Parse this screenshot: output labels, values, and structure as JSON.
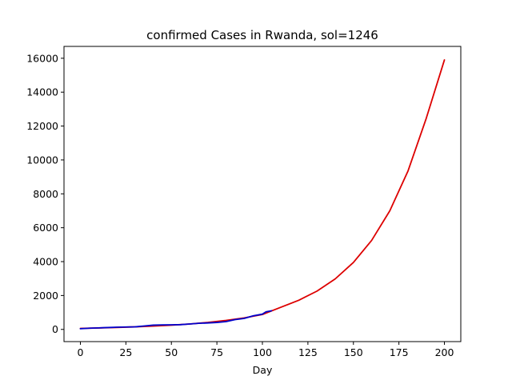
{
  "chart_data": {
    "type": "line",
    "title": "confirmed Cases in Rwanda, sol=1246",
    "xlabel": "Day",
    "ylabel": "",
    "xlim": [
      -9,
      209
    ],
    "ylim": [
      -720,
      16700
    ],
    "xticks": [
      0,
      25,
      50,
      75,
      100,
      125,
      150,
      175,
      200
    ],
    "yticks": [
      0,
      2000,
      4000,
      6000,
      8000,
      10000,
      12000,
      14000,
      16000
    ],
    "grid": false,
    "legend": "none",
    "series": [
      {
        "color": "#dd0000",
        "x": [
          0,
          10,
          20,
          30,
          40,
          50,
          60,
          70,
          80,
          90,
          100,
          110,
          120,
          130,
          140,
          150,
          160,
          170,
          180,
          190,
          200
        ],
        "y": [
          60,
          85,
          115,
          150,
          195,
          250,
          320,
          410,
          530,
          680,
          880,
          1300,
          1720,
          2260,
          2980,
          3950,
          5250,
          7000,
          9350,
          12450,
          15900
        ]
      },
      {
        "color": "#0000cc",
        "x": [
          0,
          5,
          10,
          15,
          20,
          25,
          30,
          35,
          40,
          45,
          50,
          55,
          60,
          65,
          70,
          75,
          80,
          85,
          88,
          90,
          95,
          100,
          102,
          105
        ],
        "y": [
          40,
          70,
          90,
          110,
          130,
          140,
          150,
          200,
          250,
          265,
          270,
          280,
          320,
          360,
          380,
          410,
          460,
          580,
          620,
          650,
          800,
          900,
          1040,
          1100
        ]
      }
    ]
  }
}
